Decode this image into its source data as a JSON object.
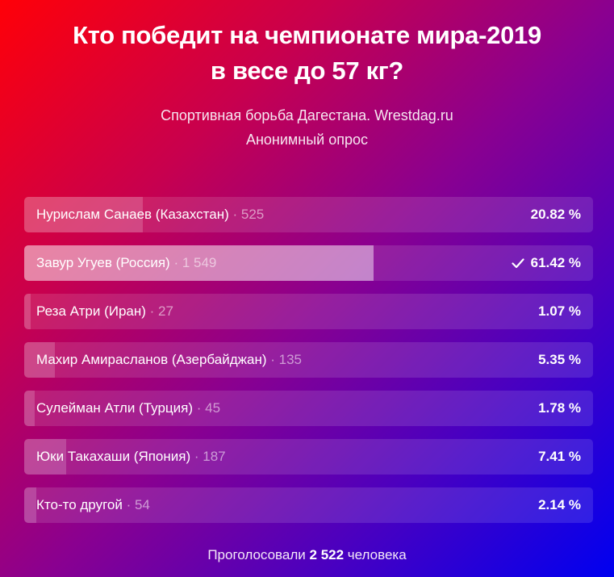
{
  "poll": {
    "title_line1": "Кто победит на чемпионате мира-2019",
    "title_line2": "в весе до 57 кг?",
    "subtitle_line1": "Спортивная борьба Дагестана. Wrestdag.ru",
    "subtitle_line2": "Анонимный опрос",
    "options": [
      {
        "name": "Нурислам Санаев (Казахстан)",
        "count": "· 525",
        "percent": "20.82 %",
        "fill_pct": 20.82,
        "selected": false
      },
      {
        "name": "Завур Угуев (Россия)",
        "count": "· 1 549",
        "percent": "61.42 %",
        "fill_pct": 61.42,
        "selected": true
      },
      {
        "name": "Реза Атри (Иран)",
        "count": "· 27",
        "percent": "1.07 %",
        "fill_pct": 1.07,
        "selected": false
      },
      {
        "name": "Махир Амирасланов (Азербайджан)",
        "count": "· 135",
        "percent": "5.35 %",
        "fill_pct": 5.35,
        "selected": false
      },
      {
        "name": "Сулейман Атли (Турция)",
        "count": "· 45",
        "percent": "1.78 %",
        "fill_pct": 1.78,
        "selected": false
      },
      {
        "name": "Юки Такахаши (Япония)",
        "count": "· 187",
        "percent": "7.41 %",
        "fill_pct": 7.41,
        "selected": false
      },
      {
        "name": "Кто-то другой",
        "count": "· 54",
        "percent": "2.14 %",
        "fill_pct": 2.14,
        "selected": false
      }
    ],
    "footer_prefix": "Проголосовали",
    "footer_total": "2 522",
    "footer_suffix": "человека",
    "selected_icon": "checkmark-icon"
  },
  "colors": {
    "gradient_start": "#ff0008",
    "gradient_mid": "#8a0090",
    "gradient_end": "#0000f0"
  }
}
